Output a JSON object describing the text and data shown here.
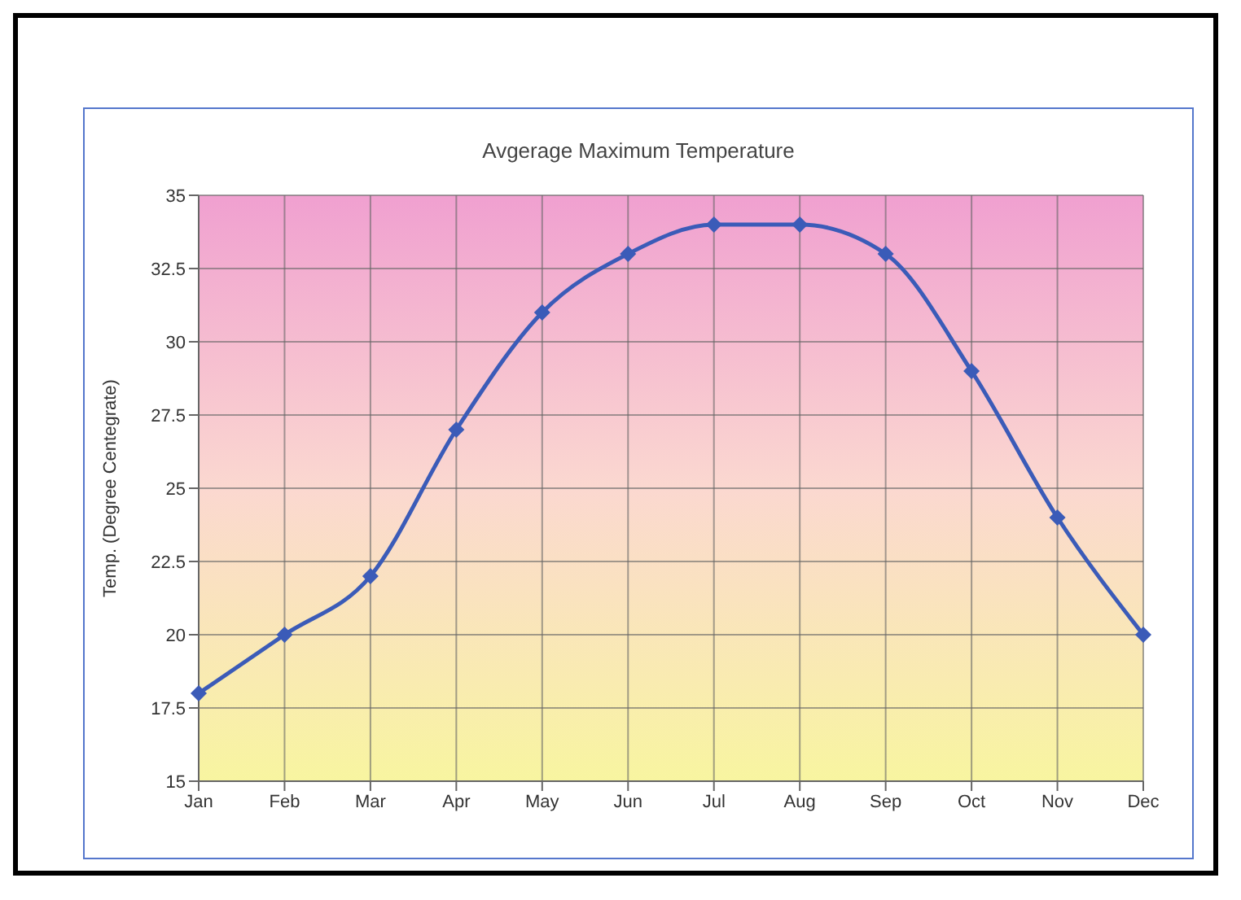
{
  "chart_data": {
    "type": "line",
    "title": "Avgerage Maximum Temperature",
    "ylabel": "Temp. (Degree Centegrate)",
    "categories": [
      "Jan",
      "Feb",
      "Mar",
      "Apr",
      "May",
      "Jun",
      "Jul",
      "Aug",
      "Sep",
      "Oct",
      "Nov",
      "Dec"
    ],
    "series": [
      {
        "color": "#3b5bb8",
        "values": [
          18,
          20,
          22,
          27,
          31,
          33,
          34,
          34,
          33,
          29,
          24,
          20
        ]
      }
    ],
    "ylim": [
      15,
      35
    ],
    "yticks": [
      15,
      17.5,
      20,
      22.5,
      25,
      27.5,
      30,
      32.5,
      35
    ],
    "grid": true,
    "marker": "diamond",
    "line_style": "solid",
    "legend": false
  }
}
